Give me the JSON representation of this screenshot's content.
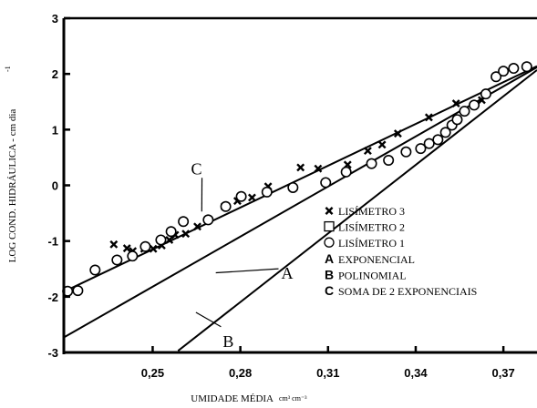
{
  "chart_data": {
    "type": "scatter",
    "xlabel": "UMIDADE MÉDIA",
    "xlabel_unit": "cm³ cm⁻³",
    "ylabel": "LOG COND. HIDRÁULICA - cm dia",
    "ylabel_unit_sup": "-1",
    "xlim": [
      0.2196,
      0.3815
    ],
    "ylim": [
      -3,
      3
    ],
    "xticks": [
      {
        "value": 0.25,
        "label": "0,25"
      },
      {
        "value": 0.28,
        "label": "0,28"
      },
      {
        "value": 0.31,
        "label": "0,31"
      },
      {
        "value": 0.34,
        "label": "0,34"
      },
      {
        "value": 0.37,
        "label": "0,37"
      }
    ],
    "yticks": [
      {
        "value": 3,
        "label": "3"
      },
      {
        "value": 2,
        "label": "2"
      },
      {
        "value": 1,
        "label": "1"
      },
      {
        "value": 0,
        "label": "0"
      },
      {
        "value": -1,
        "label": "-1"
      },
      {
        "value": -2,
        "label": "-2"
      },
      {
        "value": -3,
        "label": "-3"
      }
    ],
    "legend_position": "center-right",
    "legend": [
      {
        "symbol": "x",
        "glyph": "✖",
        "label": "LISÍMETRO 3"
      },
      {
        "symbol": "square",
        "glyph": "☐",
        "label": "LISÍMETRO 2"
      },
      {
        "symbol": "circle",
        "glyph": "○",
        "label": "LISÍMETRO 1"
      },
      {
        "symbol": "letter",
        "glyph": "A",
        "label": "EXPONENCIAL"
      },
      {
        "symbol": "letter",
        "glyph": "B",
        "label": "POLINOMIAL"
      },
      {
        "symbol": "letter",
        "glyph": "C",
        "label": "SOMA DE 2 EXPONENCIAIS"
      }
    ],
    "series": [
      {
        "name": "LISÍMETRO 3",
        "marker": "x",
        "points": [
          [
            0.2367,
            -1.06
          ],
          [
            0.2412,
            -1.13
          ],
          [
            0.2432,
            -1.18
          ],
          [
            0.2471,
            -1.14
          ],
          [
            0.2502,
            -1.14
          ],
          [
            0.2531,
            -1.08
          ],
          [
            0.2557,
            -0.98
          ],
          [
            0.2577,
            -0.89
          ],
          [
            0.2613,
            -0.87
          ],
          [
            0.2653,
            -0.74
          ],
          [
            0.2746,
            -0.38
          ],
          [
            0.279,
            -0.28
          ],
          [
            0.284,
            -0.22
          ],
          [
            0.2895,
            -0.02
          ],
          [
            0.3006,
            0.32
          ],
          [
            0.3066,
            0.3
          ],
          [
            0.3167,
            0.37
          ],
          [
            0.3236,
            0.62
          ],
          [
            0.3285,
            0.73
          ],
          [
            0.3339,
            0.93
          ],
          [
            0.3445,
            1.22
          ],
          [
            0.3538,
            1.47
          ],
          [
            0.3626,
            1.53
          ]
        ]
      },
      {
        "name": "LISÍMETRO 1",
        "marker": "circle",
        "points": [
          [
            0.2209,
            -1.9
          ],
          [
            0.2244,
            -1.89
          ],
          [
            0.2303,
            -1.52
          ],
          [
            0.2378,
            -1.34
          ],
          [
            0.2431,
            -1.27
          ],
          [
            0.2475,
            -1.1
          ],
          [
            0.2528,
            -0.98
          ],
          [
            0.2563,
            -0.83
          ],
          [
            0.2605,
            -0.65
          ],
          [
            0.269,
            -0.62
          ],
          [
            0.275,
            -0.38
          ],
          [
            0.2803,
            -0.2
          ],
          [
            0.2891,
            -0.12
          ],
          [
            0.298,
            -0.04
          ],
          [
            0.3092,
            0.05
          ],
          [
            0.3162,
            0.24
          ],
          [
            0.3249,
            0.39
          ],
          [
            0.3307,
            0.45
          ],
          [
            0.3367,
            0.6
          ],
          [
            0.3417,
            0.66
          ],
          [
            0.3446,
            0.75
          ],
          [
            0.3476,
            0.82
          ],
          [
            0.3502,
            0.95
          ],
          [
            0.3524,
            1.08
          ],
          [
            0.3542,
            1.18
          ],
          [
            0.3567,
            1.33
          ],
          [
            0.36,
            1.44
          ],
          [
            0.364,
            1.64
          ],
          [
            0.3675,
            1.95
          ],
          [
            0.37,
            2.05
          ],
          [
            0.3735,
            2.1
          ],
          [
            0.378,
            2.13
          ]
        ]
      }
    ],
    "lines": [
      {
        "name": "A",
        "points": [
          [
            0.2196,
            -2.73
          ],
          [
            0.3815,
            2.12
          ]
        ]
      },
      {
        "name": "B",
        "points": [
          [
            0.2587,
            -2.97
          ],
          [
            0.3815,
            2.07
          ]
        ]
      },
      {
        "name": "C",
        "points": [
          [
            0.2196,
            -1.91
          ],
          [
            0.3815,
            2.14
          ]
        ]
      }
    ],
    "annotations": [
      {
        "text": "C",
        "x": 0.265,
        "y": 0.2,
        "target": [
          0.2668,
          -0.47
        ]
      },
      {
        "text": "A",
        "x": 0.294,
        "y": -1.58,
        "target": [
          0.2716,
          -1.57
        ]
      },
      {
        "text": "B",
        "x": 0.274,
        "y": -2.8,
        "target": [
          0.2648,
          -2.28
        ]
      }
    ]
  }
}
